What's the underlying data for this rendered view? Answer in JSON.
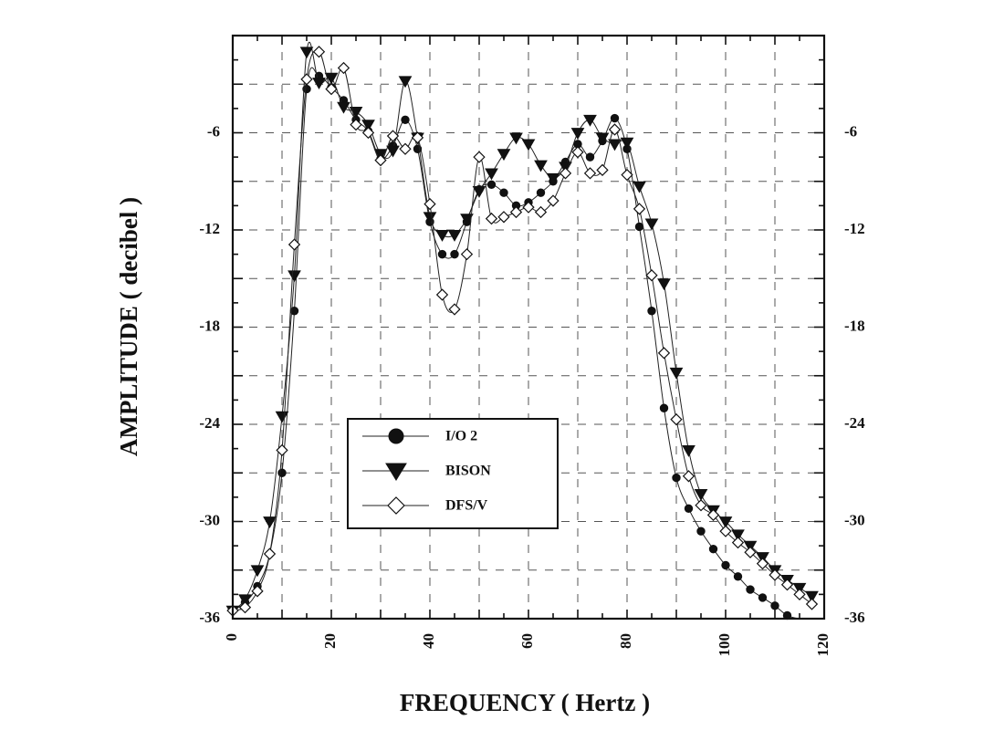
{
  "chart_data": {
    "type": "line",
    "xlabel": "FREQUENCY ( Hertz )",
    "ylabel": "AMPLITUDE ( decibel )",
    "xlim": [
      0,
      120
    ],
    "ylim": [
      -36,
      0
    ],
    "xticks": [
      "0",
      "20",
      "40",
      "60",
      "80",
      "100",
      "120"
    ],
    "yticks": [
      "-6",
      "-12",
      "-18",
      "-24",
      "-30",
      "-36"
    ],
    "grid": true,
    "legend_position": "center-left",
    "series": [
      {
        "name": "I/O 2",
        "marker": "filled-circle",
        "x": [
          0,
          2.5,
          5,
          7.5,
          10,
          12.5,
          15,
          17.5,
          20,
          22.5,
          25,
          27.5,
          30,
          32.5,
          35,
          37.5,
          40,
          42.5,
          45,
          47.5,
          50,
          52.5,
          55,
          57.5,
          60,
          62.5,
          65,
          67.5,
          70,
          72.5,
          75,
          77.5,
          80,
          82.5,
          85,
          87.5,
          90,
          92.5,
          95,
          97.5,
          100,
          102.5,
          105,
          107.5,
          110,
          112.5,
          115,
          117.5
        ],
        "y": [
          -35.5,
          -35,
          -34,
          -32,
          -27,
          -17,
          -3.3,
          -2.5,
          -3.2,
          -4,
          -5.2,
          -5.9,
          -7.6,
          -6.8,
          -5.2,
          -7,
          -11.5,
          -13.5,
          -13.5,
          -11.5,
          -9.5,
          -9.2,
          -9.7,
          -10.5,
          -10.3,
          -9.7,
          -9,
          -7.8,
          -6.7,
          -7.5,
          -6.5,
          -5.1,
          -7,
          -11.8,
          -17,
          -23,
          -27.3,
          -29.2,
          -30.6,
          -31.7,
          -32.7,
          -33.4,
          -34.2,
          -34.7,
          -35.2,
          -35.8,
          -36.1,
          -36.5
        ]
      },
      {
        "name": "BISON",
        "marker": "filled-triangle",
        "x": [
          0,
          2.5,
          5,
          7.5,
          10,
          12.5,
          15,
          17.5,
          20,
          22.5,
          25,
          27.5,
          30,
          32.5,
          35,
          37.5,
          40,
          42.5,
          45,
          47.5,
          50,
          52.5,
          55,
          57.5,
          60,
          62.5,
          65,
          67.5,
          70,
          72.5,
          75,
          77.5,
          80,
          82.5,
          85,
          87.5,
          90,
          92.5,
          95,
          97.5,
          100,
          102.5,
          105,
          107.5,
          110,
          112.5,
          115,
          117.5
        ],
        "y": [
          -35.5,
          -34.8,
          -33,
          -30,
          -23.5,
          -14.8,
          -1,
          -2.9,
          -2.6,
          -4.4,
          -4.7,
          -5.5,
          -7.3,
          -7.1,
          -2.8,
          -6.3,
          -11.2,
          -12.3,
          -12.3,
          -11.3,
          -9.6,
          -8.5,
          -7.3,
          -6.3,
          -6.7,
          -8,
          -8.8,
          -8.1,
          -6,
          -5.2,
          -6.3,
          -6.7,
          -6.6,
          -9.3,
          -11.6,
          -15.3,
          -20.8,
          -25.6,
          -28.3,
          -29.3,
          -30,
          -30.8,
          -31.5,
          -32.2,
          -33,
          -33.6,
          -34.1,
          -34.6
        ]
      },
      {
        "name": "DFS/V",
        "marker": "open-diamond",
        "x": [
          0,
          2.5,
          5,
          7.5,
          10,
          12.5,
          15,
          17.5,
          20,
          22.5,
          25,
          27.5,
          30,
          32.5,
          35,
          37.5,
          40,
          42.5,
          45,
          47.5,
          50,
          52.5,
          55,
          57.5,
          60,
          62.5,
          65,
          67.5,
          70,
          72.5,
          75,
          77.5,
          80,
          82.5,
          85,
          87.5,
          90,
          92.5,
          95,
          97.5,
          100,
          102.5,
          105,
          107.5,
          110,
          112.5,
          115,
          117.5
        ],
        "y": [
          -35.5,
          -35.3,
          -34.3,
          -32,
          -25.6,
          -12.9,
          -2.7,
          -1,
          -3.3,
          -2,
          -5.5,
          -6,
          -7.7,
          -6.2,
          -7,
          -6.3,
          -10.4,
          -16,
          -16.9,
          -13.5,
          -7.5,
          -11.3,
          -11.2,
          -10.9,
          -10.6,
          -10.9,
          -10.2,
          -8.5,
          -7.2,
          -8.5,
          -8.3,
          -5.8,
          -8.6,
          -10.7,
          -14.8,
          -19.6,
          -23.7,
          -27.2,
          -29,
          -29.6,
          -30.6,
          -31.3,
          -31.9,
          -32.6,
          -33.3,
          -33.9,
          -34.5,
          -35.1
        ]
      }
    ]
  }
}
